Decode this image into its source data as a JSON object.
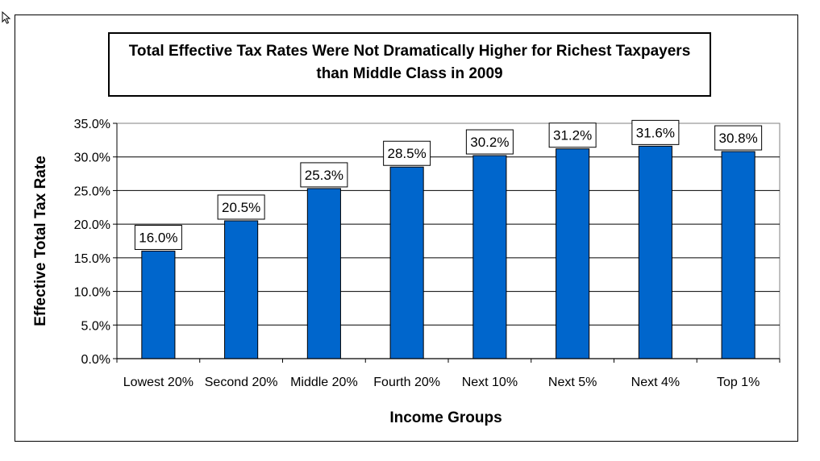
{
  "chart_data": {
    "type": "bar",
    "title_lines": [
      "Total Effective Tax Rates Were Not Dramatically Higher for Richest Taxpayers",
      "than Middle Class in 2009"
    ],
    "xlabel": "Income Groups",
    "ylabel": "Effective Total Tax Rate",
    "categories": [
      "Lowest 20%",
      "Second 20%",
      "Middle 20%",
      "Fourth 20%",
      "Next 10%",
      "Next 5%",
      "Next 4%",
      "Top 1%"
    ],
    "values": [
      16.0,
      20.5,
      25.3,
      28.5,
      30.2,
      31.2,
      31.6,
      30.8
    ],
    "data_labels": [
      "16.0%",
      "20.5%",
      "25.3%",
      "28.5%",
      "30.2%",
      "31.2%",
      "31.6%",
      "30.8%"
    ],
    "ylim": [
      0,
      35
    ],
    "yticks": [
      0,
      5,
      10,
      15,
      20,
      25,
      30,
      35
    ],
    "ytick_labels": [
      "0.0%",
      "5.0%",
      "10.0%",
      "15.0%",
      "20.0%",
      "25.0%",
      "30.0%",
      "35.0%"
    ],
    "grid": true,
    "bar_color": "#0066cc"
  }
}
